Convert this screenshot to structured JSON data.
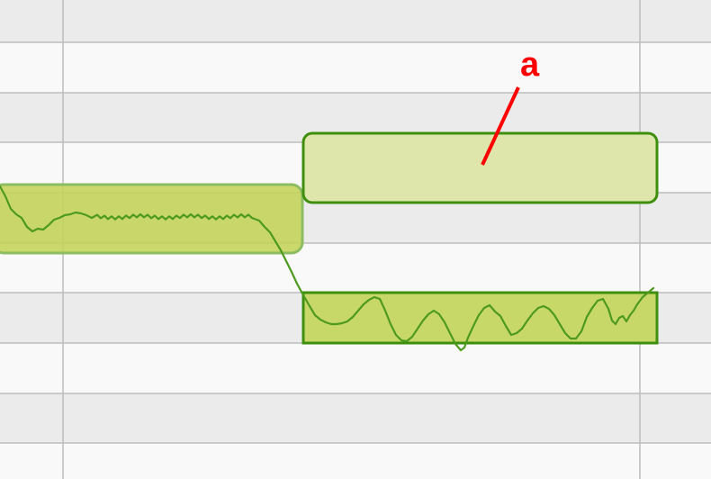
{
  "annotation": {
    "label": "a",
    "color": "#ff0000"
  },
  "colors": {
    "row_light": "#f9f9f9",
    "row_dark": "#ebebeb",
    "grid": "#bdbdbd",
    "box_left_fill": "#c3d454",
    "box_left_stroke": "#8cbd62",
    "box_upper_fill": "#dfe6ac",
    "box_upper_stroke": "#3f8f0f",
    "box_lower_fill": "#c8d868",
    "box_lower_stroke": "#3f8f0f",
    "trace": "#4d9a1f"
  }
}
